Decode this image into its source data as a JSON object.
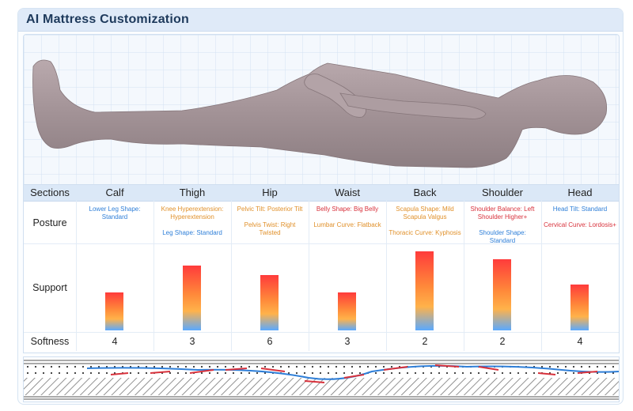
{
  "header": {
    "title": "AI Mattress Customization"
  },
  "table": {
    "row_labels": {
      "sections": "Sections",
      "posture": "Posture",
      "support": "Support",
      "softness": "Softness"
    },
    "columns": [
      {
        "name": "Calf",
        "posture": [
          {
            "text": "Lower Leg Shape: Standard",
            "color": "#2f7fd8"
          }
        ],
        "support": 0.48,
        "softness": "4"
      },
      {
        "name": "Thigh",
        "posture": [
          {
            "text": "Knee Hyperextension: Hyperextension",
            "color": "#e0902a"
          },
          {
            "text": "Leg Shape: Standard",
            "color": "#2f7fd8"
          }
        ],
        "support": 0.82,
        "softness": "3"
      },
      {
        "name": "Hip",
        "posture": [
          {
            "text": "Pelvic Tilt: Posterior Tilt",
            "color": "#e0902a"
          },
          {
            "text": "Pelvis Twist: Right Twisted",
            "color": "#e0902a"
          }
        ],
        "support": 0.7,
        "softness": "6"
      },
      {
        "name": "Waist",
        "posture": [
          {
            "text": "Belly Shape: Big Belly",
            "color": "#d8323c"
          },
          {
            "text": "Lumbar Curve: Flatback",
            "color": "#e0902a"
          }
        ],
        "support": 0.48,
        "softness": "3"
      },
      {
        "name": "Back",
        "posture": [
          {
            "text": "Scapula Shape: Mild Scapula Valgus",
            "color": "#e0902a"
          },
          {
            "text": "Thoracic Curve: Kyphosis",
            "color": "#e0902a"
          }
        ],
        "support": 1.0,
        "softness": "2"
      },
      {
        "name": "Shoulder",
        "posture": [
          {
            "text": "Shoulder Balance: Left Shoulder Higher+",
            "color": "#d8323c"
          },
          {
            "text": "Shoulder Shape: Standard",
            "color": "#2f7fd8"
          }
        ],
        "support": 0.9,
        "softness": "2"
      },
      {
        "name": "Head",
        "posture": [
          {
            "text": "Head Tilt: Standard",
            "color": "#2f7fd8"
          },
          {
            "text": "Cervical Curve: Lordosis+",
            "color": "#d8323c"
          }
        ],
        "support": 0.58,
        "softness": "4"
      }
    ]
  }
}
